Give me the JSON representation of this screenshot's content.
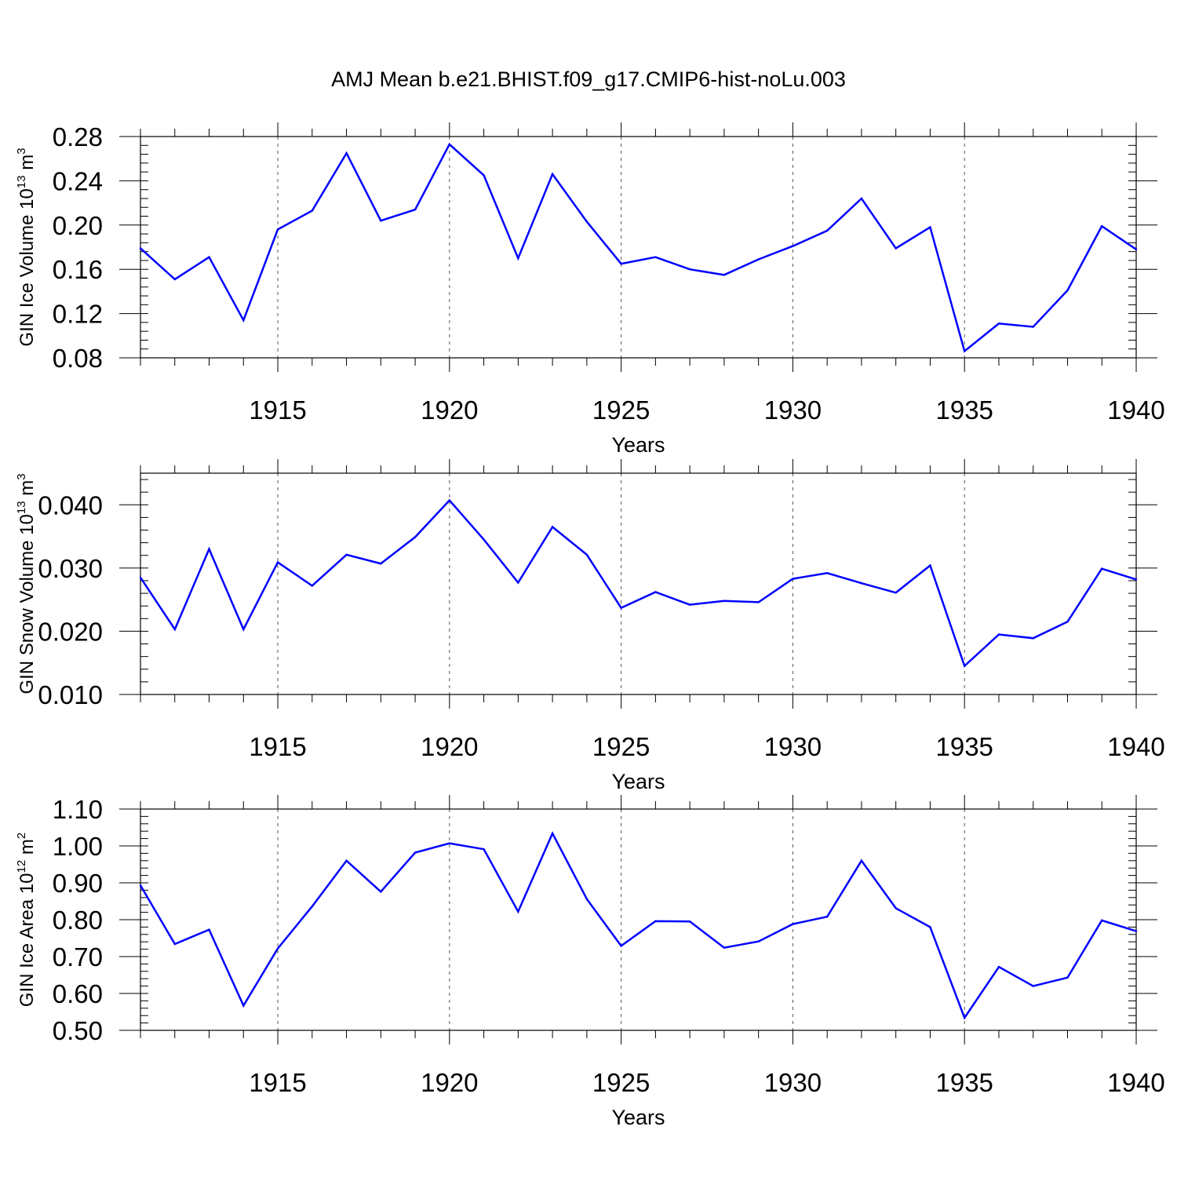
{
  "title": "AMJ Mean b.e21.BHIST.f09_g17.CMIP6-hist-noLu.003",
  "chart_data": [
    {
      "type": "line",
      "xlabel": "Years",
      "ylabel_main": "GIN Ice Volume 10",
      "ylabel_exp": "13",
      "ylabel_unit": " m",
      "ylabel_unit_exp": "3",
      "xlim": [
        1911,
        1940
      ],
      "ylim": [
        0.08,
        0.28
      ],
      "yticks": [
        0.08,
        0.12,
        0.16,
        0.2,
        0.24,
        0.28
      ],
      "ytick_labels": [
        "0.08",
        "0.12",
        "0.16",
        "0.20",
        "0.24",
        "0.28"
      ],
      "yminor_step": 0.008,
      "xticks": [
        1915,
        1920,
        1925,
        1930,
        1935,
        1940
      ],
      "xtick_labels": [
        "1915",
        "1920",
        "1925",
        "1930",
        "1935",
        "1940"
      ],
      "grid": "vertical-dashed",
      "series_color": "#0000ff",
      "x": [
        1911,
        1912,
        1913,
        1914,
        1915,
        1916,
        1917,
        1918,
        1919,
        1920,
        1921,
        1922,
        1923,
        1924,
        1925,
        1926,
        1927,
        1928,
        1929,
        1930,
        1931,
        1932,
        1933,
        1934,
        1935,
        1936,
        1937,
        1938,
        1939,
        1940
      ],
      "values": [
        0.179,
        0.151,
        0.171,
        0.114,
        0.196,
        0.213,
        0.265,
        0.204,
        0.214,
        0.273,
        0.245,
        0.17,
        0.246,
        0.203,
        0.165,
        0.171,
        0.16,
        0.155,
        0.169,
        0.181,
        0.195,
        0.224,
        0.179,
        0.198,
        0.086,
        0.111,
        0.108,
        0.141,
        0.199,
        0.178
      ]
    },
    {
      "type": "line",
      "xlabel": "Years",
      "ylabel_main": "GIN Snow Volume 10",
      "ylabel_exp": "13",
      "ylabel_unit": " m",
      "ylabel_unit_exp": "3",
      "xlim": [
        1911,
        1940
      ],
      "ylim": [
        0.01,
        0.045
      ],
      "yticks": [
        0.01,
        0.02,
        0.03,
        0.04
      ],
      "ytick_labels": [
        "0.010",
        "0.020",
        "0.030",
        "0.040"
      ],
      "yminor_step": 0.002,
      "xticks": [
        1915,
        1920,
        1925,
        1930,
        1935,
        1940
      ],
      "xtick_labels": [
        "1915",
        "1920",
        "1925",
        "1930",
        "1935",
        "1940"
      ],
      "grid": "vertical-dashed",
      "series_color": "#0000ff",
      "x": [
        1911,
        1912,
        1913,
        1914,
        1915,
        1916,
        1917,
        1918,
        1919,
        1920,
        1921,
        1922,
        1923,
        1924,
        1925,
        1926,
        1927,
        1928,
        1929,
        1930,
        1931,
        1932,
        1933,
        1934,
        1935,
        1936,
        1937,
        1938,
        1939,
        1940
      ],
      "values": [
        0.0285,
        0.0203,
        0.033,
        0.0203,
        0.0309,
        0.0272,
        0.0321,
        0.0307,
        0.0349,
        0.0407,
        0.0345,
        0.0277,
        0.0365,
        0.0321,
        0.0237,
        0.0262,
        0.0242,
        0.0248,
        0.0246,
        0.0283,
        0.0292,
        0.0276,
        0.0261,
        0.0304,
        0.0145,
        0.0195,
        0.0189,
        0.0215,
        0.0299,
        0.0282
      ]
    },
    {
      "type": "line",
      "xlabel": "Years",
      "ylabel_main": "GIN Ice Area 10",
      "ylabel_exp": "12",
      "ylabel_unit": " m",
      "ylabel_unit_exp": "2",
      "xlim": [
        1911,
        1940
      ],
      "ylim": [
        0.5,
        1.1
      ],
      "yticks": [
        0.5,
        0.6,
        0.7,
        0.8,
        0.9,
        1.0,
        1.1
      ],
      "ytick_labels": [
        "0.50",
        "0.60",
        "0.70",
        "0.80",
        "0.90",
        "1.00",
        "1.10"
      ],
      "yminor_step": 0.02,
      "xticks": [
        1915,
        1920,
        1925,
        1930,
        1935,
        1940
      ],
      "xtick_labels": [
        "1915",
        "1920",
        "1925",
        "1930",
        "1935",
        "1940"
      ],
      "grid": "vertical-dashed",
      "series_color": "#0000ff",
      "x": [
        1911,
        1912,
        1913,
        1914,
        1915,
        1916,
        1917,
        1918,
        1919,
        1920,
        1921,
        1922,
        1923,
        1924,
        1925,
        1926,
        1927,
        1928,
        1929,
        1930,
        1931,
        1932,
        1933,
        1934,
        1935,
        1936,
        1937,
        1938,
        1939,
        1940
      ],
      "values": [
        0.893,
        0.734,
        0.773,
        0.567,
        0.722,
        0.836,
        0.96,
        0.876,
        0.982,
        1.007,
        0.991,
        0.822,
        1.034,
        0.856,
        0.729,
        0.796,
        0.795,
        0.724,
        0.741,
        0.788,
        0.808,
        0.96,
        0.831,
        0.78,
        0.534,
        0.672,
        0.62,
        0.643,
        0.798,
        0.769
      ]
    }
  ]
}
